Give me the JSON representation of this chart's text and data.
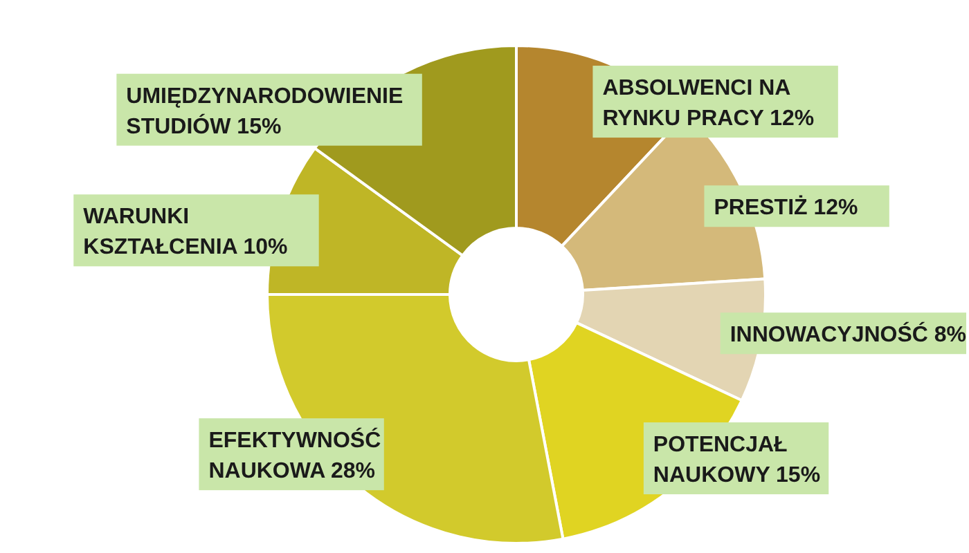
{
  "chart_data": {
    "type": "donut",
    "categories": [
      "ABSOLWENCI NA RYNKU PRACY",
      "PRESTIŻ",
      "INNOWACYJNOŚĆ",
      "POTENCJAŁ NAUKOWY",
      "EFEKTYWNOŚĆ NAUKOWA",
      "WARUNKI KSZTAŁCENIA",
      "UMIĘDZYNARODOWIENIE STUDIÓW"
    ],
    "values": [
      12,
      12,
      8,
      15,
      28,
      10,
      15
    ],
    "value_labels": [
      "12%",
      "12%",
      "8%",
      "15%",
      "28%",
      "10%",
      "15%"
    ],
    "colors": [
      "#b5862e",
      "#d4b97a",
      "#e3d5b3",
      "#e0d422",
      "#d2ca2c",
      "#bfb626",
      "#a09a1e"
    ],
    "legend": false
  }
}
